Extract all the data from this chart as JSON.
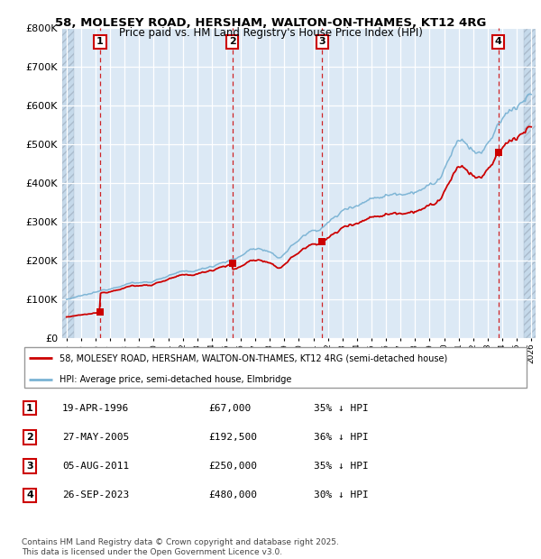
{
  "title1": "58, MOLESEY ROAD, HERSHAM, WALTON-ON-THAMES, KT12 4RG",
  "title2": "Price paid vs. HM Land Registry's House Price Index (HPI)",
  "ylim": [
    0,
    800000
  ],
  "yticks": [
    0,
    100000,
    200000,
    300000,
    400000,
    500000,
    600000,
    700000,
    800000
  ],
  "ytick_labels": [
    "£0",
    "£100K",
    "£200K",
    "£300K",
    "£400K",
    "£500K",
    "£600K",
    "£700K",
    "£800K"
  ],
  "xlim_start": 1993.7,
  "xlim_end": 2026.3,
  "sale_dates": [
    1996.3,
    2005.41,
    2011.59,
    2023.74
  ],
  "sale_prices": [
    67000,
    192500,
    250000,
    480000
  ],
  "sale_labels": [
    "1",
    "2",
    "3",
    "4"
  ],
  "hpi_color": "#7ab3d4",
  "sale_color": "#cc0000",
  "vline_color": "#cc0000",
  "legend_sale": "58, MOLESEY ROAD, HERSHAM, WALTON-ON-THAMES, KT12 4RG (semi-detached house)",
  "legend_hpi": "HPI: Average price, semi-detached house, Elmbridge",
  "transactions": [
    {
      "num": "1",
      "date": "19-APR-1996",
      "price": "£67,000",
      "hpi": "35% ↓ HPI"
    },
    {
      "num": "2",
      "date": "27-MAY-2005",
      "price": "£192,500",
      "hpi": "36% ↓ HPI"
    },
    {
      "num": "3",
      "date": "05-AUG-2011",
      "price": "£250,000",
      "hpi": "35% ↓ HPI"
    },
    {
      "num": "4",
      "date": "26-SEP-2023",
      "price": "£480,000",
      "hpi": "30% ↓ HPI"
    }
  ],
  "footnote": "Contains HM Land Registry data © Crown copyright and database right 2025.\nThis data is licensed under the Open Government Licence v3.0.",
  "plot_bg": "#dce9f5",
  "hatch_color": "#c5d9ea"
}
